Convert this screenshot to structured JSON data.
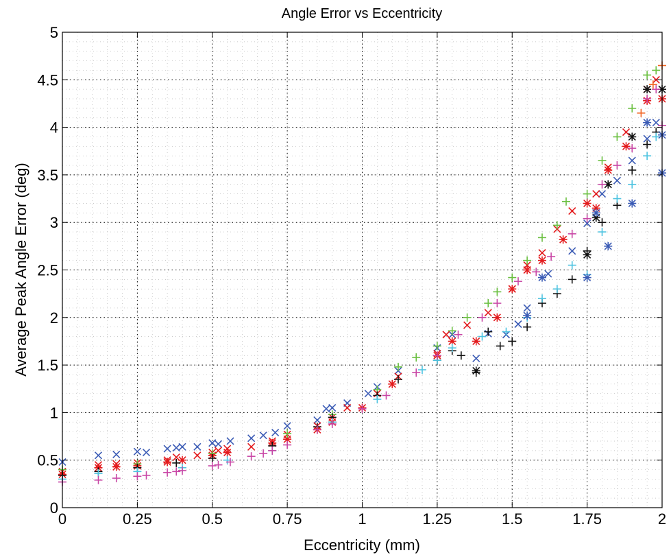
{
  "chart_data": {
    "type": "scatter",
    "title": "Angle Error vs Eccentricity",
    "xlabel": "Eccentricity (mm)",
    "ylabel": "Average Peak Angle Error (deg)",
    "xlim": [
      0,
      2
    ],
    "ylim": [
      0,
      5
    ],
    "xticks": [
      "0",
      "0.25",
      "0.5",
      "0.75",
      "1",
      "1.25",
      "1.5",
      "1.75",
      "2"
    ],
    "yticks": [
      "0",
      "0.5",
      "1",
      "1.5",
      "2",
      "2.5",
      "3",
      "3.5",
      "4",
      "4.5",
      "5"
    ],
    "grid": "dotted, major and minor",
    "legend": "none",
    "series": [
      {
        "color": "#3b5bb5",
        "marker": "x",
        "points": [
          [
            0,
            0.48
          ],
          [
            0.12,
            0.55
          ],
          [
            0.18,
            0.56
          ],
          [
            0.25,
            0.59
          ],
          [
            0.28,
            0.58
          ],
          [
            0.35,
            0.62
          ],
          [
            0.38,
            0.63
          ],
          [
            0.4,
            0.64
          ],
          [
            0.45,
            0.64
          ],
          [
            0.5,
            0.68
          ],
          [
            0.52,
            0.67
          ],
          [
            0.56,
            0.7
          ],
          [
            0.63,
            0.73
          ],
          [
            0.67,
            0.76
          ],
          [
            0.71,
            0.79
          ],
          [
            0.75,
            0.86
          ],
          [
            0.85,
            0.92
          ],
          [
            0.88,
            1.04
          ],
          [
            0.9,
            1.05
          ],
          [
            0.95,
            1.1
          ],
          [
            1.02,
            1.2
          ],
          [
            1.05,
            1.27
          ],
          [
            1.12,
            1.44
          ],
          [
            1.25,
            1.68
          ],
          [
            1.3,
            1.82
          ],
          [
            1.38,
            1.57
          ],
          [
            1.42,
            1.83
          ],
          [
            1.48,
            1.82
          ],
          [
            1.52,
            1.93
          ],
          [
            1.55,
            2.1
          ],
          [
            1.62,
            2.46
          ],
          [
            1.7,
            2.7
          ],
          [
            1.75,
            2.99
          ],
          [
            1.8,
            3.3
          ],
          [
            1.85,
            3.44
          ],
          [
            1.9,
            3.65
          ],
          [
            1.95,
            3.88
          ],
          [
            1.98,
            4.05
          ]
        ]
      },
      {
        "color": "#e31a1c",
        "marker": "x",
        "points": [
          [
            0,
            0.38
          ],
          [
            0.12,
            0.45
          ],
          [
            0.18,
            0.46
          ],
          [
            0.25,
            0.47
          ],
          [
            0.35,
            0.5
          ],
          [
            0.38,
            0.53
          ],
          [
            0.45,
            0.55
          ],
          [
            0.5,
            0.58
          ],
          [
            0.52,
            0.6
          ],
          [
            0.55,
            0.62
          ],
          [
            0.63,
            0.64
          ],
          [
            0.7,
            0.7
          ],
          [
            0.75,
            0.77
          ],
          [
            0.85,
            0.86
          ],
          [
            0.9,
            0.95
          ],
          [
            0.95,
            1.05
          ],
          [
            1.05,
            1.2
          ],
          [
            1.12,
            1.38
          ],
          [
            1.25,
            1.62
          ],
          [
            1.28,
            1.82
          ],
          [
            1.35,
            1.92
          ],
          [
            1.42,
            2.05
          ],
          [
            1.5,
            2.3
          ],
          [
            1.55,
            2.55
          ],
          [
            1.6,
            2.68
          ],
          [
            1.65,
            2.93
          ],
          [
            1.7,
            3.12
          ],
          [
            1.78,
            3.3
          ],
          [
            1.82,
            3.58
          ],
          [
            1.88,
            3.95
          ],
          [
            1.95,
            4.4
          ],
          [
            1.98,
            4.5
          ]
        ]
      },
      {
        "color": "#e31a1c",
        "marker": "*",
        "points": [
          [
            0,
            0.35
          ],
          [
            0.12,
            0.42
          ],
          [
            0.18,
            0.43
          ],
          [
            0.25,
            0.44
          ],
          [
            0.35,
            0.48
          ],
          [
            0.4,
            0.5
          ],
          [
            0.5,
            0.55
          ],
          [
            0.55,
            0.58
          ],
          [
            0.7,
            0.68
          ],
          [
            0.75,
            0.72
          ],
          [
            0.85,
            0.82
          ],
          [
            0.9,
            0.9
          ],
          [
            1.0,
            1.05
          ],
          [
            1.1,
            1.3
          ],
          [
            1.25,
            1.6
          ],
          [
            1.3,
            1.75
          ],
          [
            1.38,
            1.75
          ],
          [
            1.45,
            2.0
          ],
          [
            1.5,
            2.3
          ],
          [
            1.55,
            2.5
          ],
          [
            1.6,
            2.6
          ],
          [
            1.67,
            2.82
          ],
          [
            1.75,
            3.2
          ],
          [
            1.78,
            3.15
          ],
          [
            1.82,
            3.55
          ],
          [
            1.88,
            3.8
          ],
          [
            1.95,
            4.28
          ],
          [
            2.0,
            4.3
          ]
        ]
      },
      {
        "color": "#6abf40",
        "marker": "+",
        "points": [
          [
            0,
            0.4
          ],
          [
            0.25,
            0.46
          ],
          [
            0.5,
            0.57
          ],
          [
            0.75,
            0.78
          ],
          [
            0.9,
            0.98
          ],
          [
            1.05,
            1.24
          ],
          [
            1.12,
            1.48
          ],
          [
            1.18,
            1.58
          ],
          [
            1.25,
            1.7
          ],
          [
            1.3,
            1.86
          ],
          [
            1.35,
            2.0
          ],
          [
            1.42,
            2.15
          ],
          [
            1.45,
            2.27
          ],
          [
            1.5,
            2.42
          ],
          [
            1.55,
            2.6
          ],
          [
            1.6,
            2.84
          ],
          [
            1.65,
            2.97
          ],
          [
            1.68,
            3.22
          ],
          [
            1.75,
            3.3
          ],
          [
            1.8,
            3.65
          ],
          [
            1.85,
            3.9
          ],
          [
            1.9,
            4.2
          ],
          [
            1.95,
            4.55
          ],
          [
            1.98,
            4.6
          ]
        ]
      },
      {
        "color": "#f26522",
        "marker": "+",
        "points": [
          [
            2.0,
            4.65
          ],
          [
            1.97,
            4.45
          ],
          [
            1.93,
            4.15
          ]
        ]
      },
      {
        "color": "#111111",
        "marker": "+",
        "points": [
          [
            0,
            0.34
          ],
          [
            0.12,
            0.38
          ],
          [
            0.25,
            0.42
          ],
          [
            0.38,
            0.47
          ],
          [
            0.5,
            0.52
          ],
          [
            0.7,
            0.65
          ],
          [
            0.85,
            0.85
          ],
          [
            0.9,
            0.95
          ],
          [
            1.05,
            1.18
          ],
          [
            1.12,
            1.35
          ],
          [
            1.25,
            1.55
          ],
          [
            1.3,
            1.65
          ],
          [
            1.33,
            1.6
          ],
          [
            1.38,
            1.42
          ],
          [
            1.42,
            1.85
          ],
          [
            1.46,
            1.7
          ],
          [
            1.5,
            1.75
          ],
          [
            1.55,
            1.9
          ],
          [
            1.6,
            2.15
          ],
          [
            1.65,
            2.25
          ],
          [
            1.7,
            2.4
          ],
          [
            1.75,
            2.7
          ],
          [
            1.8,
            3.0
          ],
          [
            1.85,
            3.18
          ],
          [
            1.9,
            3.55
          ],
          [
            1.95,
            3.82
          ],
          [
            1.98,
            3.95
          ]
        ]
      },
      {
        "color": "#111111",
        "marker": "*",
        "points": [
          [
            1.38,
            1.44
          ],
          [
            1.75,
            2.66
          ],
          [
            1.78,
            3.05
          ],
          [
            1.82,
            3.4
          ],
          [
            1.9,
            3.9
          ],
          [
            1.95,
            4.4
          ],
          [
            2.0,
            4.4
          ]
        ]
      },
      {
        "color": "#4dc3e0",
        "marker": "+",
        "points": [
          [
            0,
            0.3
          ],
          [
            0.12,
            0.36
          ],
          [
            0.25,
            0.38
          ],
          [
            0.4,
            0.42
          ],
          [
            0.55,
            0.5
          ],
          [
            0.7,
            0.6
          ],
          [
            0.9,
            0.9
          ],
          [
            1.05,
            1.14
          ],
          [
            1.2,
            1.45
          ],
          [
            1.25,
            1.55
          ],
          [
            1.3,
            1.68
          ],
          [
            1.4,
            1.8
          ],
          [
            1.48,
            1.85
          ],
          [
            1.55,
            2.0
          ],
          [
            1.6,
            2.2
          ],
          [
            1.65,
            2.3
          ],
          [
            1.7,
            2.55
          ],
          [
            1.75,
            2.45
          ],
          [
            1.8,
            2.9
          ],
          [
            1.85,
            3.25
          ],
          [
            1.9,
            3.4
          ],
          [
            1.95,
            3.7
          ],
          [
            1.98,
            3.9
          ]
        ]
      },
      {
        "color": "#3b5bb5",
        "marker": "*",
        "points": [
          [
            1.55,
            2.02
          ],
          [
            1.6,
            2.42
          ],
          [
            1.75,
            2.42
          ],
          [
            1.78,
            3.1
          ],
          [
            1.82,
            2.75
          ],
          [
            1.9,
            3.2
          ],
          [
            1.95,
            4.05
          ],
          [
            2.0,
            3.52
          ],
          [
            2.0,
            3.92
          ]
        ]
      },
      {
        "color": "#c846a5",
        "marker": "+",
        "points": [
          [
            0,
            0.27
          ],
          [
            0.12,
            0.29
          ],
          [
            0.18,
            0.31
          ],
          [
            0.25,
            0.33
          ],
          [
            0.28,
            0.34
          ],
          [
            0.35,
            0.37
          ],
          [
            0.38,
            0.38
          ],
          [
            0.4,
            0.39
          ],
          [
            0.5,
            0.44
          ],
          [
            0.52,
            0.45
          ],
          [
            0.56,
            0.48
          ],
          [
            0.63,
            0.54
          ],
          [
            0.67,
            0.57
          ],
          [
            0.7,
            0.6
          ],
          [
            0.75,
            0.66
          ],
          [
            0.85,
            0.82
          ],
          [
            0.9,
            0.88
          ],
          [
            1.0,
            1.04
          ],
          [
            1.08,
            1.18
          ],
          [
            1.18,
            1.42
          ],
          [
            1.25,
            1.6
          ],
          [
            1.32,
            1.82
          ],
          [
            1.4,
            2.0
          ],
          [
            1.45,
            2.15
          ],
          [
            1.52,
            2.38
          ],
          [
            1.58,
            2.48
          ],
          [
            1.63,
            2.64
          ],
          [
            1.7,
            2.88
          ],
          [
            1.75,
            3.04
          ],
          [
            1.8,
            3.4
          ],
          [
            1.85,
            3.6
          ],
          [
            1.9,
            3.78
          ],
          [
            1.95,
            4.3
          ],
          [
            1.98,
            4.4
          ],
          [
            2.0,
            4.02
          ]
        ]
      }
    ]
  }
}
